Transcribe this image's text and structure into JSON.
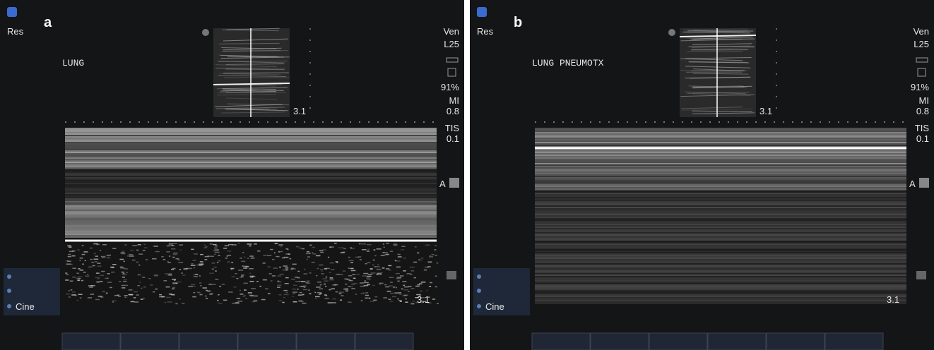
{
  "panels": [
    {
      "label": "a",
      "mode": "Res",
      "annotation": "LUNG",
      "depth_top": "3.1",
      "depth_bottom": "3.1",
      "side": [
        "Ven",
        "L25",
        "91%",
        "MI",
        "0.8",
        "TIS",
        "0.1"
      ],
      "marker": "A",
      "cine": "Cine"
    },
    {
      "label": "b",
      "mode": "Res",
      "annotation": "LUNG PNEUMOTX",
      "depth_top": "3.1",
      "depth_bottom": "3.1",
      "side": [
        "Ven",
        "L25",
        "91%",
        "MI",
        "0.8",
        "TIS",
        "0.1"
      ],
      "marker": "A",
      "cine": "Cine"
    }
  ]
}
